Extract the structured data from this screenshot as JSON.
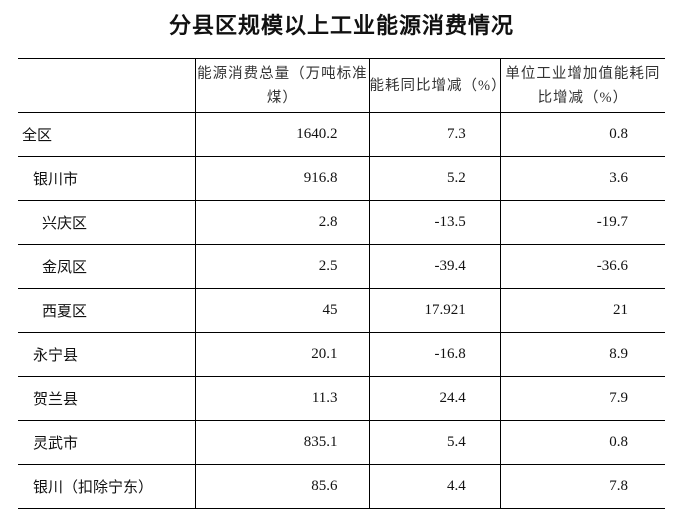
{
  "title": "分县区规模以上工业能源消费情况",
  "columns": [
    "",
    "能源消费总量（万吨标准煤）",
    "能耗同比增减（%）",
    "单位工业增加值能耗同比增减（%）"
  ],
  "rows": [
    {
      "name": "全区",
      "total": "1640.2",
      "change": "7.3",
      "unit_change": "0.8",
      "level": 0
    },
    {
      "name": "银川市",
      "total": "916.8",
      "change": "5.2",
      "unit_change": "3.6",
      "level": 1
    },
    {
      "name": "兴庆区",
      "total": "2.8",
      "change": "-13.5",
      "unit_change": "-19.7",
      "level": 2
    },
    {
      "name": "金凤区",
      "total": "2.5",
      "change": "-39.4",
      "unit_change": "-36.6",
      "level": 2
    },
    {
      "name": "西夏区",
      "total": "45",
      "change": "17.921",
      "unit_change": "21",
      "level": 2
    },
    {
      "name": "永宁县",
      "total": "20.1",
      "change": "-16.8",
      "unit_change": "8.9",
      "level": 1
    },
    {
      "name": "贺兰县",
      "total": "11.3",
      "change": "24.4",
      "unit_change": "7.9",
      "level": 1
    },
    {
      "name": "灵武市",
      "total": "835.1",
      "change": "5.4",
      "unit_change": "0.8",
      "level": 1
    },
    {
      "name": "银川（扣除宁东）",
      "total": "85.6",
      "change": "4.4",
      "unit_change": "7.8",
      "level": 1
    }
  ]
}
